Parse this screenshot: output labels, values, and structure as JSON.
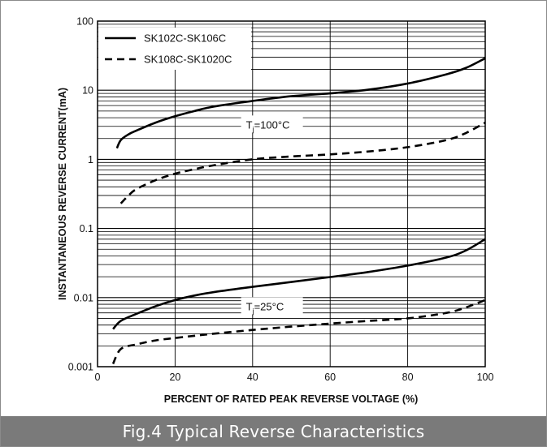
{
  "caption": "Fig.4 Typical Reverse Characteristics",
  "chart_data": {
    "type": "line",
    "title": "",
    "xlabel": "PERCENT OF RATED PEAK REVERSE VOLTAGE (%)",
    "ylabel": "INSTANTANEOUS REVERSE CURRENT(mA)",
    "x_scale": "linear",
    "y_scale": "log",
    "xlim": [
      0,
      100
    ],
    "ylim": [
      0.001,
      100
    ],
    "grid": true,
    "legend_position": "top-left",
    "x_ticks": [
      0,
      20,
      40,
      60,
      80,
      100
    ],
    "x_tick_labels": [
      "0",
      "20",
      "40",
      "60",
      "80",
      "100"
    ],
    "y_ticks": [
      0.001,
      0.01,
      0.1,
      1,
      10,
      100
    ],
    "y_tick_labels": [
      "0.001",
      "0.01",
      "0.1",
      "1",
      "10",
      "100"
    ],
    "legend": [
      {
        "label": "SK102C-SK106C",
        "style": "solid"
      },
      {
        "label": "SK108C-SK1020C",
        "style": "dashed"
      }
    ],
    "annotations": [
      {
        "text_main": "T",
        "text_sub": "j",
        "text_rest": "=100°C",
        "x": 45,
        "y": 3.2
      },
      {
        "text_main": "T",
        "text_sub": "j",
        "text_rest": "=25°C",
        "x": 45,
        "y": 0.0075
      }
    ],
    "series": [
      {
        "name": "SK102C-SK106C",
        "condition": "Tj=100°C",
        "style": "solid",
        "x": [
          5,
          6,
          8,
          10,
          15,
          20,
          25,
          30,
          40,
          50,
          60,
          70,
          80,
          90,
          95,
          100
        ],
        "y": [
          1.45,
          1.9,
          2.3,
          2.6,
          3.4,
          4.2,
          5.0,
          5.8,
          7.0,
          8.2,
          9.0,
          10.2,
          12.5,
          17,
          21,
          29
        ]
      },
      {
        "name": "SK108C-SK1020C",
        "condition": "Tj=100°C",
        "style": "dashed",
        "x": [
          6,
          8,
          10,
          15,
          20,
          25,
          30,
          40,
          50,
          60,
          70,
          80,
          90,
          95,
          100
        ],
        "y": [
          0.23,
          0.3,
          0.37,
          0.5,
          0.62,
          0.72,
          0.82,
          1.0,
          1.1,
          1.18,
          1.3,
          1.5,
          1.9,
          2.4,
          3.4
        ]
      },
      {
        "name": "SK102C-SK106C",
        "condition": "Tj=25°C",
        "style": "solid",
        "x": [
          4,
          6,
          10,
          15,
          20,
          25,
          30,
          40,
          50,
          60,
          70,
          80,
          90,
          95,
          100
        ],
        "y": [
          0.0035,
          0.0046,
          0.0058,
          0.0075,
          0.0092,
          0.0107,
          0.012,
          0.0143,
          0.0168,
          0.0198,
          0.0235,
          0.029,
          0.038,
          0.048,
          0.07
        ]
      },
      {
        "name": "SK108C-SK1020C",
        "condition": "Tj=25°C",
        "style": "dashed",
        "x": [
          4,
          6,
          10,
          15,
          20,
          25,
          30,
          40,
          50,
          60,
          70,
          80,
          90,
          95,
          100
        ],
        "y": [
          0.0011,
          0.0018,
          0.0021,
          0.0024,
          0.0026,
          0.0028,
          0.003,
          0.0034,
          0.0038,
          0.0042,
          0.0046,
          0.005,
          0.006,
          0.0072,
          0.0092
        ]
      }
    ]
  }
}
